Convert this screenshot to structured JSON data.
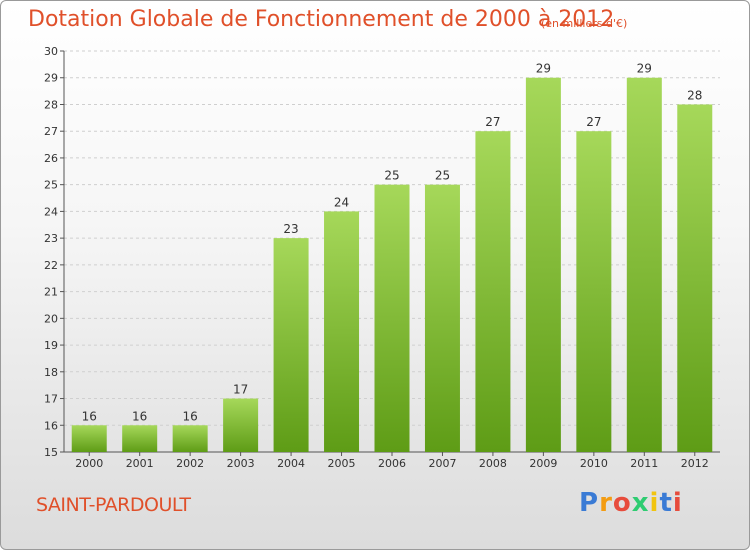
{
  "header": {
    "title": "Dotation Globale de Fonctionnement de 2000 à 2012",
    "unit": "(en milliers d'€)"
  },
  "commune": "SAINT-PARDOULT",
  "logo": {
    "letters": [
      "P",
      "r",
      "o",
      "x",
      "i",
      "t",
      "i"
    ],
    "colors": [
      "#3a7bd5",
      "#f39c12",
      "#e74c3c",
      "#2ecc71",
      "#f1c40f",
      "#3a7bd5",
      "#e74c3c"
    ]
  },
  "chart_data": {
    "type": "bar",
    "title": "Dotation Globale de Fonctionnement de 2000 à 2012",
    "xlabel": "",
    "ylabel": "",
    "categories": [
      "2000",
      "2001",
      "2002",
      "2003",
      "2004",
      "2005",
      "2006",
      "2007",
      "2008",
      "2009",
      "2010",
      "2011",
      "2012"
    ],
    "values": [
      16,
      16,
      16,
      17,
      23,
      24,
      25,
      25,
      27,
      29,
      27,
      29,
      28
    ],
    "ylim": [
      15,
      30
    ],
    "yticks": [
      15,
      16,
      17,
      18,
      19,
      20,
      21,
      22,
      23,
      24,
      25,
      26,
      27,
      28,
      29,
      30
    ],
    "grid": true,
    "bar_color_top": "#a6d85a",
    "bar_color_bottom": "#5e9c16"
  }
}
